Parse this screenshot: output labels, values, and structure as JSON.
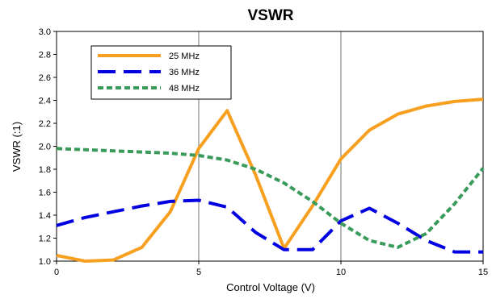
{
  "chart_data": {
    "type": "line",
    "title": "VSWR",
    "xlabel": "Control Voltage (V)",
    "ylabel": "VSWR (:1)",
    "xlim": [
      0,
      15
    ],
    "ylim": [
      1.0,
      3.0
    ],
    "xticks": [
      0,
      5,
      10,
      15
    ],
    "yticks": [
      1.0,
      1.2,
      1.4,
      1.6,
      1.8,
      2.0,
      2.2,
      2.4,
      2.6,
      2.8,
      3.0
    ],
    "x_tick_labels": [
      "0",
      "5",
      "10",
      "15"
    ],
    "y_tick_labels": [
      "1.0",
      "1.2",
      "1.4",
      "1.6",
      "1.8",
      "2.0",
      "2.2",
      "2.4",
      "2.6",
      "2.8",
      "3.0"
    ],
    "vertical_gridlines_at": [
      5,
      10
    ],
    "legend_placement": "top-left",
    "series": [
      {
        "name": "25 MHz",
        "color": "#F7A020",
        "dash": "solid",
        "x": [
          0,
          1,
          2,
          3,
          4,
          5,
          6,
          7,
          8,
          9,
          10,
          11,
          12,
          13,
          14,
          15
        ],
        "values": [
          1.05,
          1.0,
          1.01,
          1.12,
          1.43,
          1.98,
          2.31,
          1.75,
          1.11,
          1.48,
          1.89,
          2.14,
          2.28,
          2.35,
          2.39,
          2.41
        ]
      },
      {
        "name": "36 MHz",
        "color": "#0000E0",
        "dash": "long-dash",
        "x": [
          0,
          1,
          2,
          3,
          4,
          5,
          6,
          7,
          8,
          9,
          10,
          11,
          12,
          13,
          14,
          15
        ],
        "values": [
          1.31,
          1.38,
          1.43,
          1.48,
          1.52,
          1.53,
          1.47,
          1.25,
          1.1,
          1.1,
          1.35,
          1.46,
          1.33,
          1.18,
          1.08,
          1.08
        ]
      },
      {
        "name": "48 MHz",
        "color": "#3A9A5A",
        "dash": "short-dash",
        "x": [
          0,
          1,
          2,
          3,
          4,
          5,
          6,
          7,
          8,
          9,
          10,
          11,
          12,
          13,
          14,
          15
        ],
        "values": [
          1.98,
          1.97,
          1.96,
          1.95,
          1.94,
          1.92,
          1.88,
          1.8,
          1.68,
          1.52,
          1.33,
          1.18,
          1.12,
          1.24,
          1.5,
          1.81
        ]
      }
    ]
  }
}
